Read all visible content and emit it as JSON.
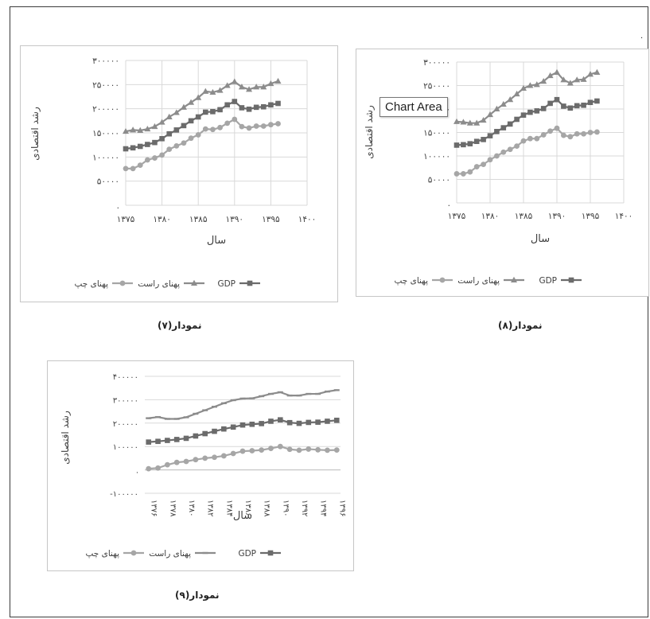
{
  "corner_mark": ".",
  "tooltip": {
    "text": "Chart Area"
  },
  "colors": {
    "gdp": "#6b6b6b",
    "rast": "#8c8c8c",
    "chap": "#a6a6a6",
    "grid": "#d9d9d9",
    "axis": "#bfbfbf"
  },
  "captions": {
    "chart7": "نمودار(۷)",
    "chart8": "نمودار(۸)",
    "chart9": "نمودار(۹)"
  },
  "chart_data": [
    {
      "type": "line",
      "ylabel": "رشد اقتصادی",
      "xlabel": "سال",
      "ylim": [
        0,
        300000
      ],
      "y_ticks": [
        "۳۰۰۰۰۰",
        "۲۵۰۰۰۰",
        "۲۰۰۰۰۰",
        "۱۵۰۰۰۰",
        "۱۰۰۰۰۰",
        "۵۰۰۰۰",
        "."
      ],
      "y_tick_values": [
        300000,
        250000,
        200000,
        150000,
        100000,
        50000,
        0
      ],
      "xlim": [
        1375,
        1400
      ],
      "x_ticks": [
        "۱۳۷۵",
        "۱۳۸۰",
        "۱۳۸۵",
        "۱۳۹۰",
        "۱۳۹۵",
        "۱۴۰۰"
      ],
      "x_tick_values": [
        1375,
        1380,
        1385,
        1390,
        1395,
        1400
      ],
      "x": [
        1375,
        1376,
        1377,
        1378,
        1379,
        1380,
        1381,
        1382,
        1383,
        1384,
        1385,
        1386,
        1387,
        1388,
        1389,
        1390,
        1391,
        1392,
        1393,
        1394,
        1395,
        1396
      ],
      "series": [
        {
          "name": "GDP",
          "marker": "square",
          "values": [
            117000,
            119000,
            122000,
            126000,
            130000,
            138000,
            148000,
            156000,
            165000,
            175000,
            183000,
            193000,
            194000,
            198000,
            208000,
            215000,
            202000,
            199000,
            203000,
            204000,
            208000,
            211000
          ]
        },
        {
          "name": "پهنای راست",
          "marker": "triangle",
          "values": [
            153000,
            156000,
            155000,
            158000,
            163000,
            172000,
            183000,
            192000,
            203000,
            213000,
            223000,
            236000,
            234000,
            238000,
            248000,
            256000,
            245000,
            240000,
            245000,
            245000,
            252000,
            257000
          ]
        },
        {
          "name": "پهنای چپ",
          "marker": "circle",
          "values": [
            76000,
            76000,
            83000,
            94000,
            98000,
            104000,
            116000,
            123000,
            129000,
            139000,
            146000,
            158000,
            157000,
            161000,
            170000,
            178000,
            163000,
            160000,
            164000,
            164000,
            167000,
            169000
          ]
        }
      ],
      "legend": {
        "position": "bottom",
        "items": [
          "GDP",
          "پهنای راست",
          "پهنای چپ"
        ]
      }
    },
    {
      "type": "line",
      "ylabel": "رشد اقتصادی",
      "xlabel": "سال",
      "ylim": [
        0,
        300000
      ],
      "y_ticks": [
        "۳۰۰۰۰۰",
        "۲۵۰۰۰۰",
        "۲۰۰۰۰۰",
        "۱۵۰۰۰۰",
        "۱۰۰۰۰۰",
        "۵۰۰۰۰",
        "."
      ],
      "y_tick_values": [
        300000,
        250000,
        200000,
        150000,
        100000,
        50000,
        0
      ],
      "xlim": [
        1375,
        1400
      ],
      "x_ticks": [
        "۱۳۷۵",
        "۱۳۸۰",
        "۱۳۸۵",
        "۱۳۹۰",
        "۱۳۹۵",
        "۱۴۰۰"
      ],
      "x_tick_values": [
        1375,
        1380,
        1385,
        1390,
        1395,
        1400
      ],
      "x": [
        1375,
        1376,
        1377,
        1378,
        1379,
        1380,
        1381,
        1382,
        1383,
        1384,
        1385,
        1386,
        1387,
        1388,
        1389,
        1390,
        1391,
        1392,
        1393,
        1394,
        1395,
        1396
      ],
      "series": [
        {
          "name": "GDP",
          "marker": "square",
          "values": [
            123000,
            124000,
            126000,
            131000,
            135000,
            143000,
            152000,
            160000,
            168000,
            178000,
            187000,
            193000,
            196000,
            201000,
            212000,
            220000,
            206000,
            202000,
            207000,
            208000,
            214000,
            217000
          ]
        },
        {
          "name": "پهنای راست",
          "marker": "triangle",
          "values": [
            173000,
            172000,
            170000,
            170000,
            176000,
            188000,
            200000,
            210000,
            220000,
            232000,
            244000,
            250000,
            252000,
            259000,
            271000,
            278000,
            262000,
            255000,
            262000,
            263000,
            274000,
            278000
          ]
        },
        {
          "name": "پهنای چپ",
          "marker": "circle",
          "values": [
            62000,
            62000,
            66000,
            77000,
            82000,
            92000,
            100000,
            108000,
            114000,
            121000,
            132000,
            137000,
            137000,
            145000,
            153000,
            159000,
            144000,
            141000,
            147000,
            147000,
            150000,
            151000
          ]
        }
      ],
      "legend": {
        "position": "bottom",
        "items": [
          "GDP",
          "پهنای راست",
          "پهنای چپ"
        ]
      }
    },
    {
      "type": "line",
      "ylabel": "رشد اقتصادی",
      "xlabel": "سال",
      "ylim": [
        -100000,
        400000
      ],
      "y_ticks": [
        "۴۰۰۰۰۰",
        "۳۰۰۰۰۰",
        "۲۰۰۰۰۰",
        "۱۰۰۰۰۰",
        ".",
        "-۱۰۰۰۰۰"
      ],
      "y_tick_values": [
        400000,
        300000,
        200000,
        100000,
        0,
        -100000
      ],
      "x_tick_labels": [
        "۱۳۷۶",
        "۱۳۷۸",
        "۱۳۸۰",
        "۱۳۸۲",
        "۱۳۸۴",
        "۱۳۸۶",
        "۱۳۸۸",
        "۱۳۹۰",
        "۱۳۹۲",
        "۱۳۹۴",
        "۱۳۹۶"
      ],
      "x": [
        1376,
        1377,
        1378,
        1379,
        1380,
        1381,
        1382,
        1383,
        1384,
        1385,
        1386,
        1387,
        1388,
        1389,
        1390,
        1391,
        1392,
        1393,
        1394,
        1395,
        1396
      ],
      "series": [
        {
          "name": "GDP",
          "marker": "square",
          "values": [
            119000,
            122000,
            126000,
            130000,
            135000,
            145000,
            155000,
            165000,
            175000,
            183000,
            192000,
            195000,
            198000,
            208000,
            214000,
            202000,
            199000,
            203000,
            204000,
            208000,
            212000
          ]
        },
        {
          "name": "پهنای راست",
          "marker": "dash",
          "values": [
            221000,
            226000,
            218000,
            218000,
            225000,
            240000,
            255000,
            270000,
            285000,
            298000,
            305000,
            306000,
            315000,
            325000,
            332000,
            318000,
            318000,
            325000,
            325000,
            335000,
            341000
          ]
        },
        {
          "name": "پهنای چپ",
          "marker": "circle",
          "values": [
            5000,
            8000,
            22000,
            32000,
            36000,
            44000,
            50000,
            54000,
            60000,
            70000,
            80000,
            82000,
            85000,
            92000,
            100000,
            88000,
            84000,
            89000,
            86000,
            84000,
            85000
          ]
        }
      ],
      "legend": {
        "position": "bottom",
        "items": [
          "GDP",
          "پهنای راست",
          "پهنای چپ"
        ]
      }
    }
  ]
}
